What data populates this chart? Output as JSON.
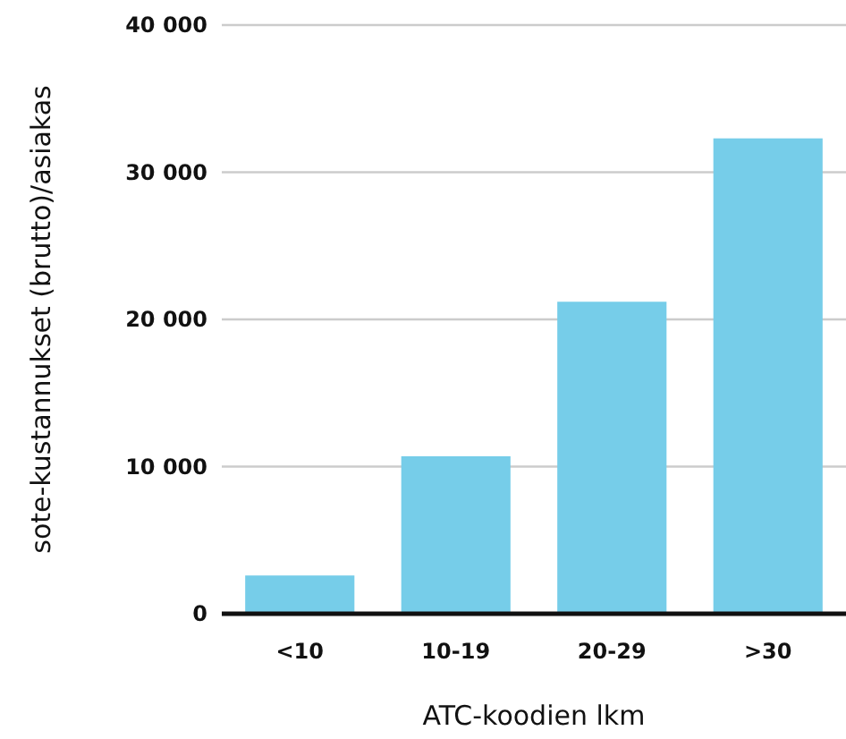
{
  "chart_data": {
    "type": "bar",
    "xlabel": "ATC-koodien lkm",
    "ylabel": "sote-kustannukset (brutto)/asiakas",
    "categories": [
      "<10",
      "10-19",
      "20-29",
      ">30"
    ],
    "values": [
      2600,
      10700,
      21200,
      32300
    ],
    "color": "#76cde9",
    "ylim": [
      0,
      40000
    ],
    "yticks": [
      {
        "value": 0,
        "label": "0"
      },
      {
        "value": 10000,
        "label": "10 000"
      },
      {
        "value": 20000,
        "label": "20 000"
      },
      {
        "value": 30000,
        "label": "30 000"
      },
      {
        "value": 40000,
        "label": "40 000"
      }
    ],
    "grid": "y"
  }
}
